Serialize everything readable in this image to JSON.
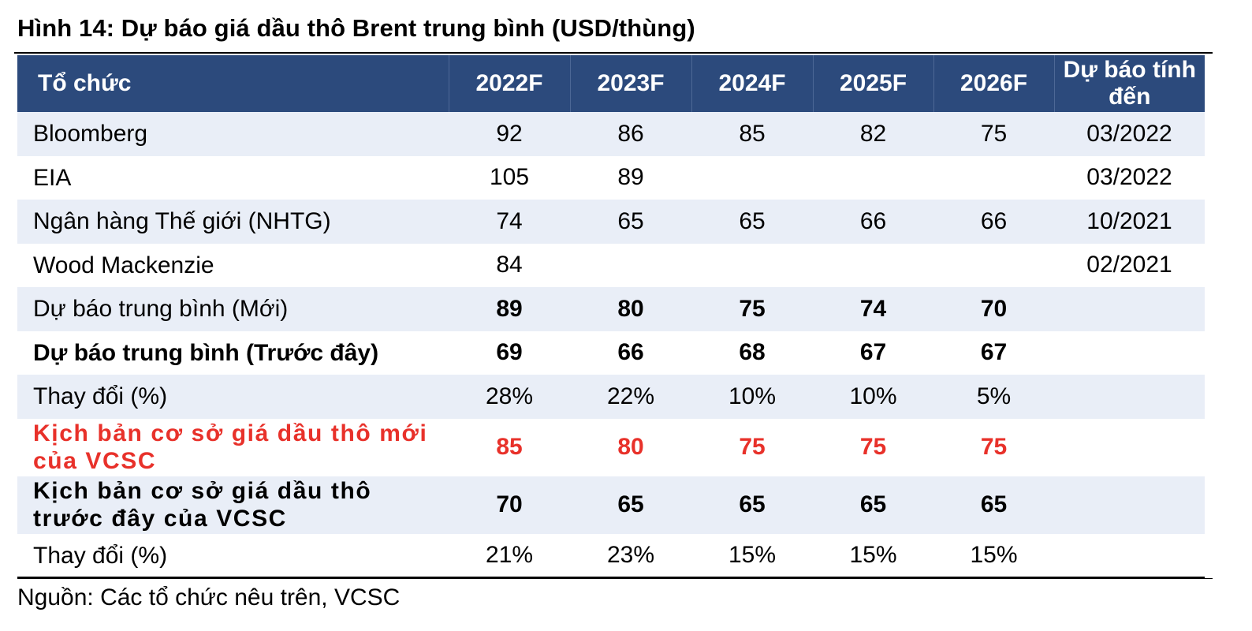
{
  "title": "Hình 14: Dự báo giá dầu thô Brent trung bình (USD/thùng)",
  "colors": {
    "header_bg": "#2c4a7c",
    "row_shade": "#e9eef7",
    "highlight_red": "#e8312a"
  },
  "table": {
    "headers": [
      "Tổ chức",
      "2022F",
      "2023F",
      "2024F",
      "2025F",
      "2026F",
      "Dự báo tính đến"
    ],
    "rows": [
      {
        "org": "Bloomberg",
        "v2022": "92",
        "v2023": "86",
        "v2024": "85",
        "v2025": "82",
        "v2026": "75",
        "as_of": "03/2022"
      },
      {
        "org": "EIA",
        "v2022": "105",
        "v2023": "89",
        "v2024": "",
        "v2025": "",
        "v2026": "",
        "as_of": "03/2022"
      },
      {
        "org": "Ngân hàng Thế giới (NHTG)",
        "v2022": "74",
        "v2023": "65",
        "v2024": "65",
        "v2025": "66",
        "v2026": "66",
        "as_of": "10/2021"
      },
      {
        "org": "Wood Mackenzie",
        "v2022": "84",
        "v2023": "",
        "v2024": "",
        "v2025": "",
        "v2026": "",
        "as_of": "02/2021"
      },
      {
        "org": "Dự báo trung bình (Mới)",
        "v2022": "89",
        "v2023": "80",
        "v2024": "75",
        "v2025": "74",
        "v2026": "70",
        "as_of": ""
      },
      {
        "org": "Dự báo trung bình (Trước đây)",
        "v2022": "69",
        "v2023": "66",
        "v2024": "68",
        "v2025": "67",
        "v2026": "67",
        "as_of": ""
      },
      {
        "org": "Thay đổi (%)",
        "v2022": "28%",
        "v2023": "22%",
        "v2024": "10%",
        "v2025": "10%",
        "v2026": "5%",
        "as_of": ""
      },
      {
        "org": "Kịch bản cơ sở giá dầu thô mới của VCSC",
        "v2022": "85",
        "v2023": "80",
        "v2024": "75",
        "v2025": "75",
        "v2026": "75",
        "as_of": ""
      },
      {
        "org": "Kịch bản cơ sở giá dầu thô trước đây của VCSC",
        "v2022": "70",
        "v2023": "65",
        "v2024": "65",
        "v2025": "65",
        "v2026": "65",
        "as_of": ""
      },
      {
        "org": "Thay đổi (%)",
        "v2022": "21%",
        "v2023": "23%",
        "v2024": "15%",
        "v2025": "15%",
        "v2026": "15%",
        "as_of": ""
      }
    ]
  },
  "source": "Nguồn: Các tổ chức nêu trên, VCSC"
}
